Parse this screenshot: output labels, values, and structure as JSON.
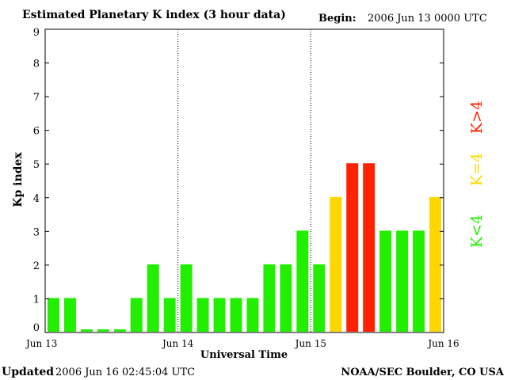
{
  "chart_data": {
    "type": "bar",
    "title": "Estimated Planetary K index (3 hour data)",
    "begin_label": "Begin:",
    "begin_value": "2006 Jun 13 0000 UTC",
    "xlabel": "Universal Time",
    "ylabel": "Kp index",
    "ylim": [
      0,
      9
    ],
    "yticks": [
      "0",
      "1",
      "2",
      "3",
      "4",
      "5",
      "6",
      "7",
      "8",
      "9"
    ],
    "x_tick_labels": [
      "Jun 13",
      "Jun 14",
      "Jun 15",
      "Jun 16"
    ],
    "values": [
      1,
      1,
      0,
      0,
      0,
      1,
      2,
      1,
      2,
      1,
      1,
      1,
      1,
      2,
      2,
      3,
      2,
      4,
      5,
      5,
      3,
      3,
      3,
      4
    ],
    "legend": [
      {
        "label": "K<4",
        "color": "#22ee00"
      },
      {
        "label": "K=4",
        "color": "#ffd700"
      },
      {
        "label": "K>4",
        "color": "#ff2200"
      }
    ],
    "grid": false
  },
  "footer": {
    "updated_label": "Updated",
    "updated_value": "2006 Jun 16 02:45:04 UTC",
    "source": "NOAA/SEC Boulder, CO USA"
  }
}
